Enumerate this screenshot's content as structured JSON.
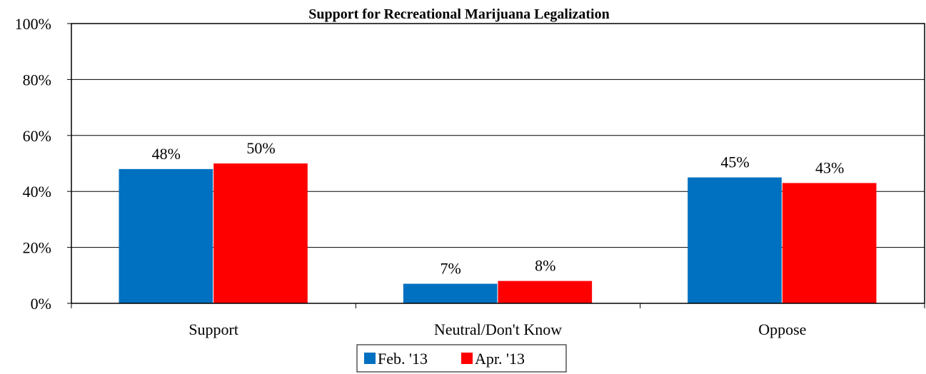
{
  "chart_data": {
    "type": "bar",
    "title": "Support for Recreational Marijuana Legalization",
    "xlabel": "",
    "ylabel": "",
    "categories": [
      "Support",
      "Neutral/Don't Know",
      "Oppose"
    ],
    "series": [
      {
        "name": "Feb. '13",
        "color": "#0070c0",
        "values": [
          48,
          7,
          45
        ],
        "labels": [
          "48%",
          "7%",
          "45%"
        ]
      },
      {
        "name": "Apr. '13",
        "color": "#ff0000",
        "values": [
          50,
          8,
          43
        ],
        "labels": [
          "50%",
          "8%",
          "43%"
        ]
      }
    ],
    "ylim": [
      0,
      100
    ],
    "yticks": [
      0,
      20,
      40,
      60,
      80,
      100
    ],
    "ytick_labels": [
      "0%",
      "20%",
      "40%",
      "60%",
      "80%",
      "100%"
    ],
    "grid": true,
    "legend": "bottom-center"
  }
}
